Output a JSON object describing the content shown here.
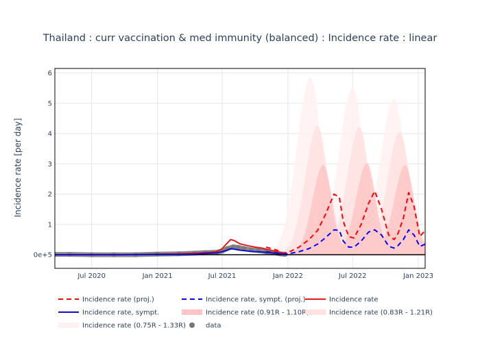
{
  "chart_data": {
    "type": "line",
    "title": "Thailand : curr vaccination & med immunity (balanced) : Incidence rate : linear",
    "xlabel": "",
    "ylabel": "Incidence rate [per day]",
    "x_range": [
      "2020-03-20",
      "2023-01-20"
    ],
    "ylim": [
      -0.45,
      6.15
    ],
    "y_ticks": [
      {
        "value": 0,
        "label": "0e+5"
      },
      {
        "value": 1,
        "label": "1"
      },
      {
        "value": 2,
        "label": "2"
      },
      {
        "value": 3,
        "label": "3"
      },
      {
        "value": 4,
        "label": "4"
      },
      {
        "value": 5,
        "label": "5"
      },
      {
        "value": 6,
        "label": "6"
      }
    ],
    "x_ticks": [
      {
        "date": "2020-07-01",
        "label": "Jul 2020"
      },
      {
        "date": "2021-01-01",
        "label": "Jan 2021"
      },
      {
        "date": "2021-07-01",
        "label": "Jul 2021"
      },
      {
        "date": "2022-01-01",
        "label": "Jan 2022"
      },
      {
        "date": "2022-07-01",
        "label": "Jul 2022"
      },
      {
        "date": "2023-01-01",
        "label": "Jan 2023"
      }
    ],
    "grid": true,
    "legend_position": "bottom",
    "colors": {
      "proj": "#ff0000",
      "sympt_proj": "#0000ff",
      "actual": "#e31a1c",
      "sympt": "#1010cc",
      "band_inner": "#ffc5c5",
      "band_mid": "#ffe1e1",
      "band_outer": "#fff1f1",
      "data": "#777777",
      "grid": "#e5e5e5",
      "zero_line": "#000000"
    },
    "series": [
      {
        "name": "Incidence rate (proj.)",
        "style": "dash",
        "color": "#ff0000",
        "x": [
          "2021-11-01",
          "2021-12-01",
          "2021-12-20",
          "2022-01-10",
          "2022-02-01",
          "2022-03-01",
          "2022-03-25",
          "2022-04-15",
          "2022-05-10",
          "2022-05-25",
          "2022-06-05",
          "2022-06-20",
          "2022-07-05",
          "2022-07-25",
          "2022-08-15",
          "2022-09-01",
          "2022-09-20",
          "2022-10-10",
          "2022-10-25",
          "2022-11-05",
          "2022-11-20",
          "2022-12-05",
          "2022-12-20",
          "2023-01-05",
          "2023-01-20"
        ],
        "y": [
          0.25,
          0.15,
          0.05,
          0.12,
          0.25,
          0.5,
          0.8,
          1.3,
          2.0,
          1.9,
          1.1,
          0.6,
          0.55,
          1.0,
          1.7,
          2.1,
          1.5,
          0.65,
          0.5,
          0.7,
          1.2,
          2.05,
          1.6,
          0.6,
          0.8
        ]
      },
      {
        "name": "Incidence rate, sympt. (proj.)",
        "style": "dash",
        "color": "#0000ff",
        "x": [
          "2021-11-01",
          "2021-12-01",
          "2021-12-20",
          "2022-01-10",
          "2022-02-01",
          "2022-03-01",
          "2022-03-25",
          "2022-04-15",
          "2022-05-10",
          "2022-05-25",
          "2022-06-05",
          "2022-06-20",
          "2022-07-05",
          "2022-07-25",
          "2022-08-15",
          "2022-09-01",
          "2022-09-20",
          "2022-10-10",
          "2022-10-25",
          "2022-11-05",
          "2022-11-20",
          "2022-12-05",
          "2022-12-20",
          "2023-01-05",
          "2023-01-20"
        ],
        "y": [
          0.1,
          0.06,
          0.02,
          0.05,
          0.1,
          0.2,
          0.35,
          0.55,
          0.82,
          0.8,
          0.45,
          0.25,
          0.25,
          0.45,
          0.75,
          0.82,
          0.65,
          0.28,
          0.22,
          0.3,
          0.5,
          0.82,
          0.65,
          0.27,
          0.35
        ]
      },
      {
        "name": "Incidence rate",
        "style": "solid",
        "color": "#e31a1c",
        "x": [
          "2020-03-20",
          "2020-06-01",
          "2020-10-01",
          "2021-01-01",
          "2021-03-01",
          "2021-04-15",
          "2021-05-15",
          "2021-06-15",
          "2021-07-01",
          "2021-07-15",
          "2021-07-25",
          "2021-08-05",
          "2021-08-20",
          "2021-09-10",
          "2021-10-01",
          "2021-10-20",
          "2021-11-10",
          "2021-12-01",
          "2021-12-20"
        ],
        "y": [
          0.0,
          0.0,
          0.0,
          0.02,
          0.03,
          0.05,
          0.07,
          0.1,
          0.2,
          0.38,
          0.5,
          0.46,
          0.36,
          0.3,
          0.25,
          0.22,
          0.16,
          0.1,
          0.05
        ]
      },
      {
        "name": "Incidence rate, sympt.",
        "style": "solid",
        "color": "#1010cc",
        "x": [
          "2020-03-20",
          "2020-06-01",
          "2020-10-01",
          "2021-01-01",
          "2021-03-01",
          "2021-04-15",
          "2021-05-15",
          "2021-06-15",
          "2021-07-01",
          "2021-07-15",
          "2021-07-25",
          "2021-08-05",
          "2021-08-20",
          "2021-09-10",
          "2021-10-01",
          "2021-10-20",
          "2021-11-10",
          "2021-12-01",
          "2021-12-20"
        ],
        "y": [
          0.0,
          0.0,
          0.0,
          0.01,
          0.01,
          0.02,
          0.04,
          0.06,
          0.1,
          0.15,
          0.2,
          0.18,
          0.15,
          0.12,
          0.1,
          0.09,
          0.07,
          0.04,
          0.02
        ]
      },
      {
        "name": "Incidence rate (0.91R - 1.10R)",
        "type": "band",
        "color": "#ffc5c5",
        "peaks": [
          [
            "2022-04-10",
            2.9
          ],
          [
            "2022-08-10",
            2.9
          ],
          [
            "2022-11-25",
            2.8
          ]
        ]
      },
      {
        "name": "Incidence rate (0.83R - 1.21R)",
        "type": "band",
        "color": "#ffe1e1",
        "peaks": [
          [
            "2022-03-25",
            4.2
          ],
          [
            "2022-07-20",
            4.1
          ],
          [
            "2022-11-10",
            3.9
          ]
        ]
      },
      {
        "name": "Incidence rate (0.75R - 1.33R)",
        "type": "band",
        "color": "#fff1f1",
        "peaks": [
          [
            "2022-03-05",
            5.8
          ],
          [
            "2022-07-01",
            5.4
          ],
          [
            "2022-10-25",
            5.0
          ]
        ]
      },
      {
        "name": "data",
        "type": "scatter",
        "color": "#777777",
        "x": [
          "2020-03-20",
          "2020-05-01",
          "2020-07-01",
          "2020-09-01",
          "2020-11-01",
          "2021-01-01",
          "2021-03-01",
          "2021-04-15",
          "2021-05-15",
          "2021-06-15",
          "2021-07-01",
          "2021-07-15",
          "2021-08-01",
          "2021-08-15",
          "2021-09-01",
          "2021-09-20",
          "2021-10-10",
          "2021-11-01",
          "2021-11-20",
          "2021-12-10",
          "2021-12-25"
        ],
        "y": [
          0.01,
          0.01,
          0.0,
          0.0,
          0.0,
          0.02,
          0.03,
          0.05,
          0.07,
          0.08,
          0.12,
          0.2,
          0.26,
          0.24,
          0.2,
          0.16,
          0.14,
          0.1,
          0.07,
          0.03,
          0.01
        ]
      }
    ]
  }
}
